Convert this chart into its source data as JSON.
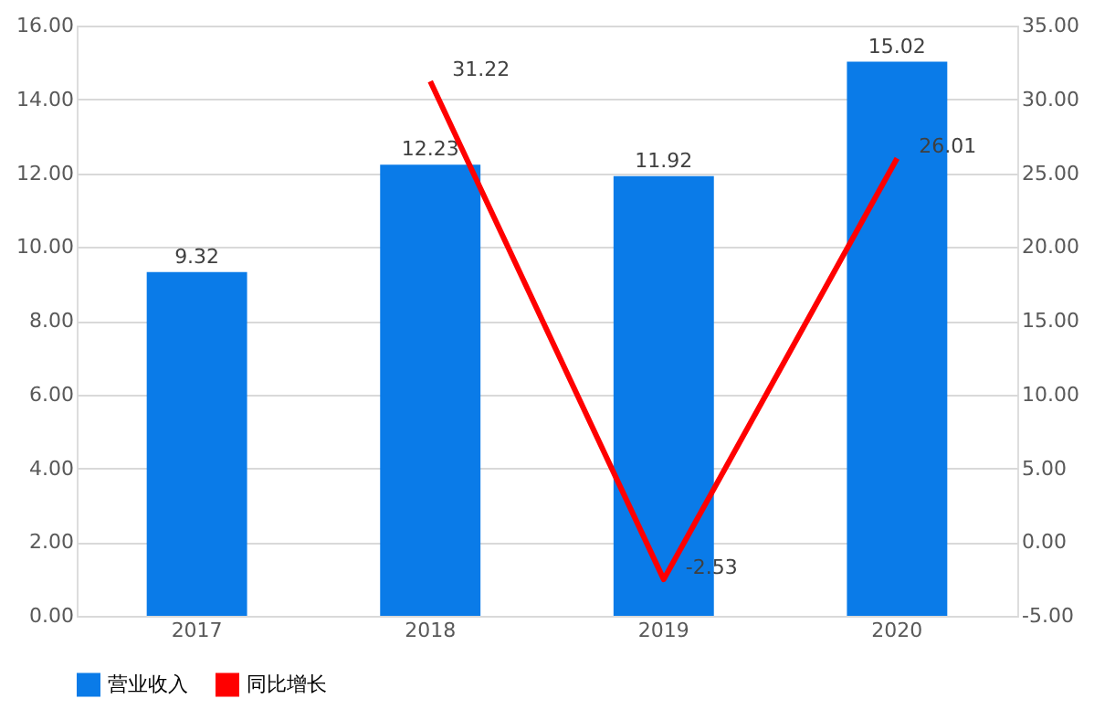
{
  "chart_data": {
    "type": "bar",
    "categories": [
      "2017",
      "2018",
      "2019",
      "2020"
    ],
    "series": [
      {
        "name": "营业收入",
        "color": "#0a7be8",
        "values": [
          9.32,
          12.23,
          11.92,
          15.02
        ]
      },
      {
        "name": "同比增长",
        "type": "line",
        "axis": "y2",
        "color": "#ff0000",
        "values": [
          null,
          31.22,
          -2.53,
          26.01
        ]
      }
    ],
    "ylim": [
      0,
      16
    ],
    "yticks": [
      {
        "value": 0,
        "label": "0.00"
      },
      {
        "value": 2,
        "label": "2.00"
      },
      {
        "value": 4,
        "label": "4.00"
      },
      {
        "value": 6,
        "label": "6.00"
      },
      {
        "value": 8,
        "label": "8.00"
      },
      {
        "value": 10,
        "label": "10.00"
      },
      {
        "value": 12,
        "label": "12.00"
      },
      {
        "value": 14,
        "label": "14.00"
      },
      {
        "value": 16,
        "label": "16.00"
      }
    ],
    "y2lim": [
      -5,
      35
    ],
    "y2ticks": [
      {
        "value": -5,
        "label": "-5.00"
      },
      {
        "value": 0,
        "label": "0.00"
      },
      {
        "value": 5,
        "label": "5.00"
      },
      {
        "value": 10,
        "label": "10.00"
      },
      {
        "value": 15,
        "label": "15.00"
      },
      {
        "value": 20,
        "label": "20.00"
      },
      {
        "value": 25,
        "label": "25.00"
      },
      {
        "value": 30,
        "label": "30.00"
      },
      {
        "value": 35,
        "label": "35.00"
      }
    ],
    "grid": "y",
    "legend": "bottom",
    "data_labels": true,
    "marker": "none",
    "line_style": "solid"
  }
}
